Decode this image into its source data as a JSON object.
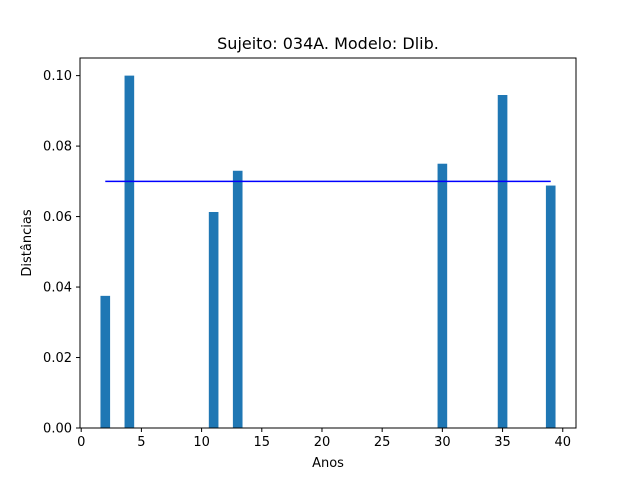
{
  "chart_data": {
    "type": "bar",
    "title": "Sujeito: 034A. Modelo: Dlib.",
    "xlabel": "Anos",
    "ylabel": "Distâncias",
    "xlim": [
      -0.1,
      41.1
    ],
    "ylim": [
      0,
      0.105
    ],
    "xticks": [
      0,
      5,
      10,
      15,
      20,
      25,
      30,
      35,
      40
    ],
    "xtick_labels": [
      "0",
      "5",
      "10",
      "15",
      "20",
      "25",
      "30",
      "35",
      "40"
    ],
    "yticks": [
      0,
      0.02,
      0.04,
      0.06,
      0.08,
      0.1
    ],
    "ytick_labels": [
      "0.00",
      "0.02",
      "0.04",
      "0.06",
      "0.08",
      "0.10"
    ],
    "bar_width": 0.8,
    "bar_color": "#1f77b4",
    "bars": [
      {
        "x": 2,
        "value": 0.0375
      },
      {
        "x": 4,
        "value": 0.1
      },
      {
        "x": 11,
        "value": 0.0613
      },
      {
        "x": 13,
        "value": 0.073
      },
      {
        "x": 30,
        "value": 0.075
      },
      {
        "x": 35,
        "value": 0.0945
      },
      {
        "x": 39,
        "value": 0.0688
      }
    ],
    "threshold_line": {
      "x_start": 2,
      "x_end": 39,
      "y": 0.07,
      "color": "#0000ff"
    },
    "grid": false
  }
}
